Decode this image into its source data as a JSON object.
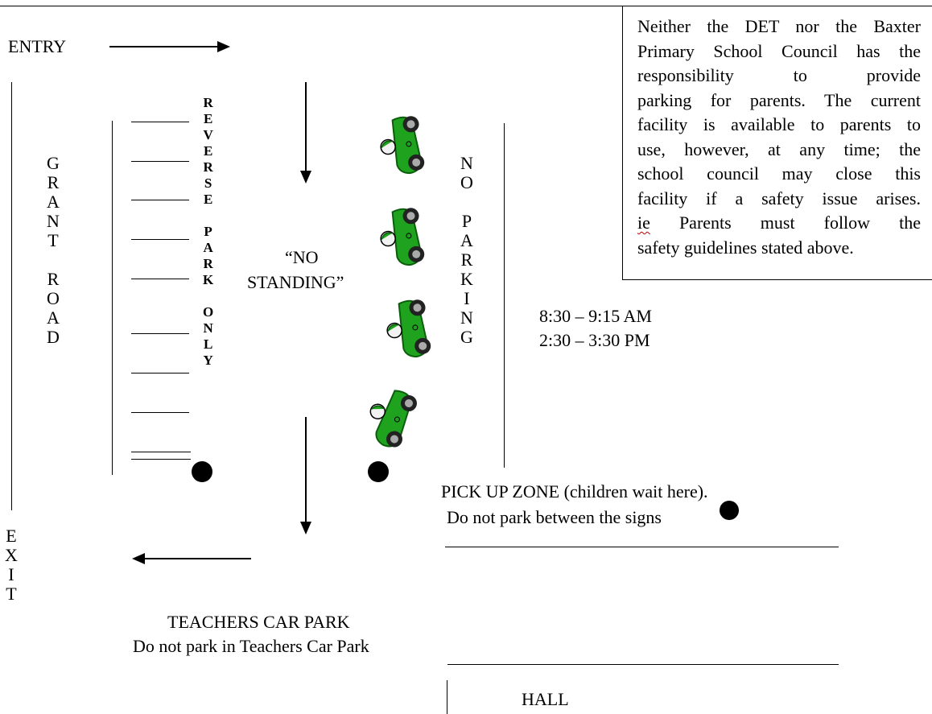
{
  "entry": "ENTRY",
  "exit_letters": [
    "E",
    "X",
    "I",
    "T"
  ],
  "grant_road_letters": [
    "G",
    "R",
    "A",
    "N",
    "T",
    "",
    "R",
    "O",
    "A",
    "D"
  ],
  "reverse_park_letters": [
    "R",
    "E",
    "V",
    "E",
    "R",
    "S",
    "E",
    "",
    "P",
    "A",
    "R",
    "K",
    "",
    "O",
    "N",
    "L",
    "Y"
  ],
  "no_parking_letters": [
    "N",
    "O",
    "",
    "P",
    "A",
    "R",
    "K",
    "I",
    "N",
    "G"
  ],
  "no_standing": [
    "“NO",
    "STANDING”"
  ],
  "times": [
    "8:30 – 9:15 AM",
    "2:30 – 3:30 PM"
  ],
  "notice": {
    "lines": [
      "Neither the DET nor the Baxter",
      "Primary School Council has the",
      "responsibility to provide",
      "parking for parents. The current",
      "facility is available to parents to",
      "use, however, at any time; the",
      "school council may close this",
      "facility if a safety issue arises."
    ],
    "ie_word": "ie",
    "last_line_rest": " Parents must follow the",
    "final_line": "safety guidelines stated above."
  },
  "pickup": {
    "line1": "PICK UP ZONE (children wait here).",
    "line2": "Do not park between the signs"
  },
  "teachers": {
    "title": "TEACHERS CAR PARK",
    "note": "Do not park in Teachers Car Park"
  },
  "hall": "HALL",
  "colors": {
    "car_body": "#1fa31f",
    "car_dark": "#0b5e0b",
    "ink": "#000000"
  },
  "icons": [
    "arrow-right-icon",
    "arrow-down-icon",
    "arrow-left-icon",
    "car-icon",
    "sign-dot-icon"
  ]
}
